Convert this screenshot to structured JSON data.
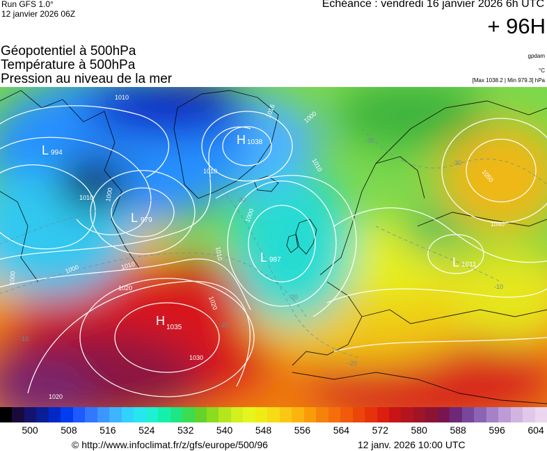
{
  "header": {
    "run": "Run GFS 1.0°",
    "run_date": "12 janvier 2026 06Z",
    "echeance": "Echéance : vendredi 16 janvier 2026 6h UTC",
    "horizon": "+ 96H"
  },
  "parameters": [
    "Géopotentiel à 500hPa",
    "Température à 500hPa",
    "Pression au niveau de la mer"
  ],
  "units": [
    "gpdam",
    "°C",
    "[Max 1038.2 | Min 979.3] hPa"
  ],
  "pressure_centers": [
    {
      "type": "L",
      "value": "994",
      "name": "low-north-atlantic-west"
    },
    {
      "type": "L",
      "value": "979",
      "name": "low-labrador"
    },
    {
      "type": "H",
      "value": "1038",
      "name": "high-greenland"
    },
    {
      "type": "L",
      "value": "987",
      "name": "low-iceland-scotland"
    },
    {
      "type": "L",
      "value": "1011",
      "name": "low-eastern-europe"
    },
    {
      "type": "H",
      "value": "1035",
      "name": "high-azores"
    }
  ],
  "isobar_labels": [
    "1010",
    "1010",
    "1000",
    "1010",
    "1020",
    "1016",
    "1000",
    "1010",
    "1000",
    "1010",
    "1000",
    "1000",
    "1010",
    "1020",
    "1020",
    "1030",
    "1020",
    "1050",
    "1040"
  ],
  "isotherm_labels": [
    "-30",
    "-30",
    "-30",
    "-20",
    "-20",
    "-10",
    "-20",
    "-10"
  ],
  "scale": {
    "ticks": [
      "500",
      "508",
      "516",
      "524",
      "532",
      "540",
      "548",
      "556",
      "564",
      "572",
      "580",
      "588",
      "596",
      "604"
    ],
    "colors": [
      "#000000",
      "#1a0a3c",
      "#14146e",
      "#0a1e96",
      "#0028c8",
      "#003cf0",
      "#1e5aff",
      "#3278ff",
      "#3c96ff",
      "#3cb4ff",
      "#32d2ff",
      "#28e6f0",
      "#1ef0d2",
      "#14f0aa",
      "#1ee682",
      "#3cdc50",
      "#64d228",
      "#8cdc1e",
      "#b4e61e",
      "#d2ef1e",
      "#e6f51e",
      "#f0eb14",
      "#f5dc14",
      "#fac814",
      "#fab40f",
      "#fa9b0a",
      "#f5820a",
      "#f56e0a",
      "#f05a0a",
      "#eb460a",
      "#e6320a",
      "#dc1e0f",
      "#c81414",
      "#b4141e",
      "#a01428",
      "#8c1432",
      "#7a1450",
      "#6e2878",
      "#78469b",
      "#8c64b4",
      "#a582c8",
      "#be9bd7",
      "#d2b4e1",
      "#e1c8eb",
      "#ebd7f0"
    ]
  },
  "footer": {
    "copyright": "© http://www.infoclimat.fr/z/gfs/europe/500/96",
    "issued": "12 janv. 2026 10:00 UTC"
  }
}
